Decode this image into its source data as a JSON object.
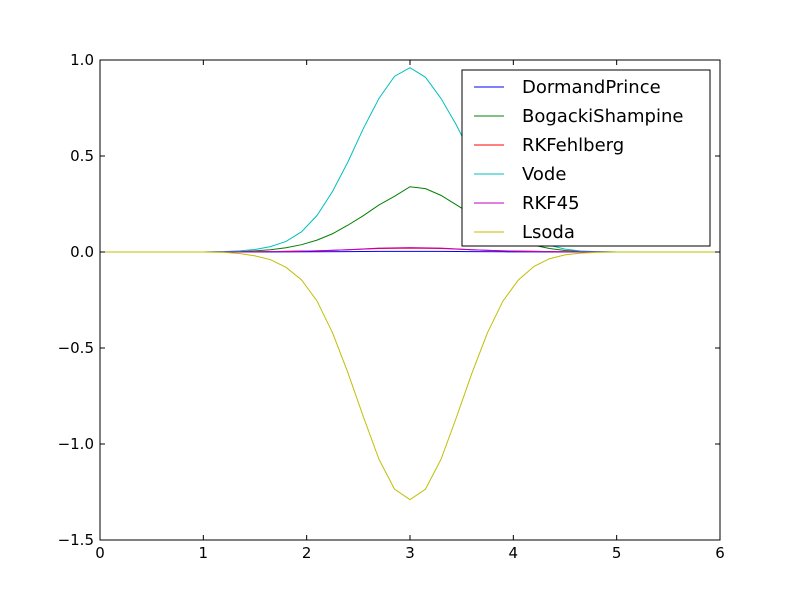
{
  "chart_data": {
    "type": "line",
    "title": "",
    "xlabel": "",
    "ylabel": "",
    "xlim": [
      0,
      6
    ],
    "ylim": [
      -1.5,
      1.0
    ],
    "xticks": [
      0,
      1,
      2,
      3,
      4,
      5,
      6
    ],
    "xtick_labels": [
      "0",
      "1",
      "2",
      "3",
      "4",
      "5",
      "6"
    ],
    "yticks": [
      -1.5,
      -1.0,
      -0.5,
      0.0,
      0.5,
      1.0
    ],
    "ytick_labels": [
      "−1.5",
      "−1.0",
      "−0.5",
      "0.0",
      "0.5",
      "1.0"
    ],
    "grid": false,
    "legend_position": "top-right",
    "series": [
      {
        "name": "DormandPrince",
        "color": "#0000ff",
        "x": [
          0,
          0.6,
          1.2,
          1.5,
          1.8,
          2.1,
          2.4,
          2.7,
          3.0,
          3.3,
          3.6,
          3.9,
          4.2,
          4.5,
          4.8,
          5.4,
          6.0
        ],
        "y": [
          0,
          0,
          0,
          0,
          0.0005,
          0.001,
          0.002,
          0.003,
          0.003,
          0.003,
          0.002,
          0.001,
          0.0005,
          0,
          0,
          0,
          0
        ]
      },
      {
        "name": "BogackiShampine",
        "color": "#008000",
        "x": [
          0,
          0.5,
          1.0,
          1.2,
          1.35,
          1.5,
          1.65,
          1.8,
          1.95,
          2.1,
          2.25,
          2.4,
          2.55,
          2.7,
          2.85,
          3.0,
          3.15,
          3.3,
          3.45,
          3.6,
          3.75,
          3.9,
          4.05,
          4.2,
          4.35,
          4.5,
          4.65,
          4.8,
          5.0,
          5.5,
          6.0
        ],
        "y": [
          0,
          0,
          0,
          0.001,
          0.002,
          0.006,
          0.012,
          0.022,
          0.038,
          0.062,
          0.095,
          0.14,
          0.19,
          0.245,
          0.29,
          0.34,
          0.33,
          0.295,
          0.245,
          0.195,
          0.14,
          0.095,
          0.06,
          0.035,
          0.018,
          0.008,
          0.003,
          0.001,
          0,
          0,
          0
        ]
      },
      {
        "name": "RKFehlberg",
        "color": "#ff0000",
        "x": [
          0,
          1.2,
          1.5,
          1.8,
          2.1,
          2.4,
          2.7,
          3.0,
          3.3,
          3.6,
          3.9,
          4.2,
          4.5,
          4.8,
          5.4,
          6.0
        ],
        "y": [
          0,
          0,
          0.001,
          0.003,
          0.006,
          0.012,
          0.018,
          0.02,
          0.018,
          0.012,
          0.006,
          0.003,
          0.001,
          0,
          0,
          0
        ]
      },
      {
        "name": "Vode",
        "color": "#00bfbf",
        "x": [
          0,
          0.5,
          1.0,
          1.2,
          1.35,
          1.5,
          1.65,
          1.8,
          1.95,
          2.1,
          2.25,
          2.4,
          2.55,
          2.7,
          2.85,
          3.0,
          3.15,
          3.3,
          3.45,
          3.6,
          3.75,
          3.9,
          4.05,
          4.2,
          4.35,
          4.5,
          4.65,
          4.8,
          5.0,
          5.5,
          6.0
        ],
        "y": [
          0,
          0,
          0,
          0.002,
          0.006,
          0.013,
          0.028,
          0.055,
          0.105,
          0.19,
          0.315,
          0.47,
          0.645,
          0.8,
          0.915,
          0.96,
          0.91,
          0.8,
          0.66,
          0.5,
          0.36,
          0.235,
          0.14,
          0.075,
          0.035,
          0.015,
          0.005,
          0.002,
          0,
          0,
          0
        ]
      },
      {
        "name": "RKF45",
        "color": "#bf00bf",
        "x": [
          0,
          1.2,
          1.5,
          1.8,
          2.1,
          2.4,
          2.7,
          3.0,
          3.3,
          3.6,
          3.9,
          4.2,
          4.5,
          4.8,
          5.4,
          6.0
        ],
        "y": [
          0,
          0,
          0.001,
          0.003,
          0.006,
          0.012,
          0.02,
          0.023,
          0.02,
          0.012,
          0.006,
          0.003,
          0.001,
          0,
          0,
          0
        ]
      },
      {
        "name": "Lsoda",
        "color": "#bfbf00",
        "x": [
          0,
          0.5,
          1.0,
          1.2,
          1.35,
          1.5,
          1.65,
          1.8,
          1.95,
          2.1,
          2.25,
          2.4,
          2.55,
          2.7,
          2.85,
          3.0,
          3.15,
          3.3,
          3.45,
          3.6,
          3.75,
          3.9,
          4.05,
          4.2,
          4.35,
          4.5,
          4.65,
          4.8,
          5.0,
          5.5,
          6.0
        ],
        "y": [
          0,
          0,
          0,
          -0.002,
          -0.008,
          -0.02,
          -0.04,
          -0.08,
          -0.145,
          -0.255,
          -0.42,
          -0.63,
          -0.86,
          -1.08,
          -1.235,
          -1.29,
          -1.235,
          -1.08,
          -0.86,
          -0.63,
          -0.42,
          -0.255,
          -0.145,
          -0.075,
          -0.035,
          -0.015,
          -0.006,
          -0.002,
          0,
          0,
          0
        ]
      }
    ]
  }
}
